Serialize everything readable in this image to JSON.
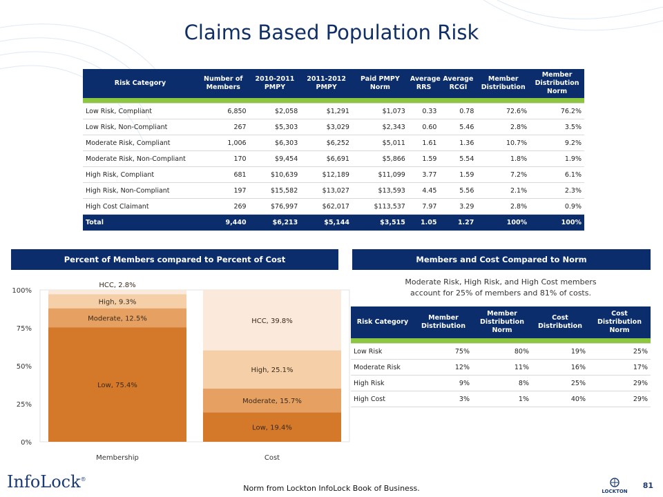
{
  "title": "Claims Based Population Risk",
  "main_table": {
    "headers": [
      "Risk Category",
      "Number of Members",
      "2010-2011 PMPY",
      "2011-2012 PMPY",
      "Paid PMPY Norm",
      "Average RRS",
      "Average RCGI",
      "Member Distribution",
      "Member Distribution Norm"
    ],
    "rows": [
      [
        "Low Risk, Compliant",
        "6,850",
        "$2,058",
        "$1,291",
        "$1,073",
        "0.33",
        "0.78",
        "72.6%",
        "76.2%"
      ],
      [
        "Low Risk, Non-Compliant",
        "267",
        "$5,303",
        "$3,029",
        "$2,343",
        "0.60",
        "5.46",
        "2.8%",
        "3.5%"
      ],
      [
        "Moderate Risk, Compliant",
        "1,006",
        "$6,303",
        "$6,252",
        "$5,011",
        "1.61",
        "1.36",
        "10.7%",
        "9.2%"
      ],
      [
        "Moderate Risk, Non-Compliant",
        "170",
        "$9,454",
        "$6,691",
        "$5,866",
        "1.59",
        "5.54",
        "1.8%",
        "1.9%"
      ],
      [
        "High Risk, Compliant",
        "681",
        "$10,639",
        "$12,189",
        "$11,099",
        "3.77",
        "1.59",
        "7.2%",
        "6.1%"
      ],
      [
        "High Risk, Non-Compliant",
        "197",
        "$15,582",
        "$13,027",
        "$13,593",
        "4.45",
        "5.56",
        "2.1%",
        "2.3%"
      ],
      [
        "High Cost Claimant",
        "269",
        "$76,997",
        "$62,017",
        "$113,537",
        "7.97",
        "3.29",
        "2.8%",
        "0.9%"
      ]
    ],
    "total": [
      "Total",
      "9,440",
      "$6,213",
      "$5,144",
      "$3,515",
      "1.05",
      "1.27",
      "100%",
      "100%"
    ]
  },
  "left_section": {
    "header": "Percent of Members compared to Percent of Cost"
  },
  "right_section": {
    "header": "Members and Cost Compared to Norm",
    "caption_line1": "Moderate Risk, High Risk, and High Cost members",
    "caption_line2": "account for 25% of members and 81% of costs."
  },
  "comparison_table": {
    "headers": [
      "Risk Category",
      "Member Distribution",
      "Member Distribution Norm",
      "Cost Distribution",
      "Cost Distribution Norm"
    ],
    "rows": [
      [
        "Low Risk",
        "75%",
        "80%",
        "19%",
        "25%"
      ],
      [
        "Moderate Risk",
        "12%",
        "11%",
        "16%",
        "17%"
      ],
      [
        "High Risk",
        "9%",
        "8%",
        "25%",
        "29%"
      ],
      [
        "High Cost",
        "3%",
        "1%",
        "40%",
        "29%"
      ]
    ]
  },
  "chart_data": {
    "type": "bar",
    "stacked": true,
    "percent_stacked": true,
    "categories": [
      "Membership",
      "Cost"
    ],
    "series": [
      {
        "name": "Low",
        "values": [
          75.4,
          19.4
        ],
        "labels": [
          "Low, 75.4%",
          "Low, 19.4%"
        ],
        "color": "#d4782a"
      },
      {
        "name": "Moderate",
        "values": [
          12.5,
          15.7
        ],
        "labels": [
          "Moderate, 12.5%",
          "Moderate, 15.7%"
        ],
        "color": "#e5a062"
      },
      {
        "name": "High",
        "values": [
          9.3,
          25.1
        ],
        "labels": [
          "High, 9.3%",
          "High, 25.1%"
        ],
        "color": "#f4cfa8"
      },
      {
        "name": "HCC",
        "values": [
          2.8,
          39.8
        ],
        "labels": [
          "HCC, 2.8%",
          "HCC, 39.8%"
        ],
        "color": "#fbe9dc"
      }
    ],
    "yticks": [
      "0%",
      "25%",
      "50%",
      "75%",
      "100%"
    ],
    "ylim": [
      0,
      100
    ],
    "grid": false,
    "legend": "none"
  },
  "footer": {
    "note": "Norm from Lockton InfoLock Book of Business.",
    "brand": "InfoLock",
    "brand_mark": "®",
    "lockton": "LOCKTON",
    "page": "81"
  }
}
